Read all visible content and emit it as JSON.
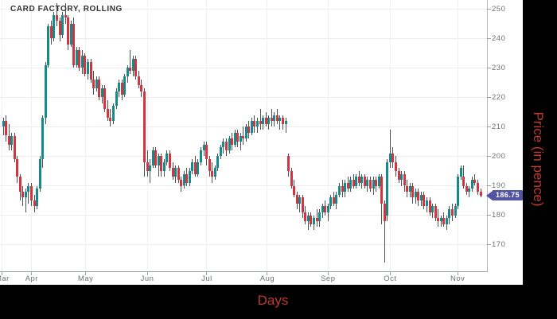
{
  "chart_data": {
    "type": "candlestick",
    "title": "CARD FACTORY, ROLLING",
    "xlabel": "Days",
    "ylabel": "Price (in pence)",
    "price_marker": {
      "label": "186.75",
      "value": 186.75,
      "color": "#5253a3"
    },
    "colors": {
      "up": "#128b8a",
      "down": "#d33540",
      "wick": "#4d5154",
      "grid": "#ececec",
      "axis": "#9aa0a3",
      "tick_label": "#6b7175",
      "axis_title": "#c2392e",
      "title": "#333333",
      "frame": "#000000",
      "plot_bg": "#ffffff"
    },
    "y_axis": {
      "ticks": [
        250,
        240,
        230,
        220,
        210,
        200,
        190,
        180,
        170
      ],
      "ylim": [
        161,
        253
      ]
    },
    "x_axis": {
      "ticks": [
        {
          "label": "Mar",
          "i": -0.3
        },
        {
          "label": "Apr",
          "i": 10.1
        },
        {
          "label": "May",
          "i": 29.2
        },
        {
          "label": "Jun",
          "i": 51.0
        },
        {
          "label": "Jul",
          "i": 72.1
        },
        {
          "label": "Aug",
          "i": 93.5
        },
        {
          "label": "Sep",
          "i": 115.0
        },
        {
          "label": "Oct",
          "i": 137.0
        },
        {
          "label": "Nov",
          "i": 160.9
        }
      ]
    },
    "candles": [
      [
        210,
        213,
        207,
        212
      ],
      [
        212,
        214,
        205,
        207
      ],
      [
        207,
        211,
        202,
        204
      ],
      [
        204,
        208,
        202,
        207
      ],
      [
        207,
        208,
        198,
        199
      ],
      [
        199,
        200,
        191,
        193
      ],
      [
        193,
        194,
        185,
        188
      ],
      [
        188,
        190,
        183,
        186
      ],
      [
        186,
        189,
        181,
        188
      ],
      [
        188,
        191,
        184,
        190
      ],
      [
        190,
        191,
        183,
        185
      ],
      [
        185,
        187,
        181,
        183
      ],
      [
        183,
        190,
        182,
        189
      ],
      [
        189,
        200,
        188,
        199
      ],
      [
        199,
        214,
        196,
        213
      ],
      [
        213,
        232,
        211,
        231
      ],
      [
        231,
        245,
        230,
        244
      ],
      [
        244,
        246,
        238,
        240
      ],
      [
        240,
        249,
        239,
        248
      ],
      [
        248,
        252,
        244,
        246
      ],
      [
        246,
        247,
        239,
        241
      ],
      [
        241,
        249,
        240,
        248
      ],
      [
        248,
        252,
        245,
        247
      ],
      [
        247,
        248,
        236,
        238
      ],
      [
        238,
        246,
        237,
        245
      ],
      [
        245,
        247,
        230,
        231
      ],
      [
        231,
        237,
        230,
        236
      ],
      [
        236,
        237,
        229,
        230
      ],
      [
        230,
        236,
        228,
        234
      ],
      [
        234,
        235,
        227,
        228
      ],
      [
        228,
        233,
        226,
        232
      ],
      [
        232,
        233,
        225,
        226
      ],
      [
        226,
        229,
        221,
        223
      ],
      [
        223,
        227,
        222,
        226
      ],
      [
        226,
        227,
        219,
        220
      ],
      [
        220,
        224,
        218,
        223
      ],
      [
        223,
        224,
        215,
        216
      ],
      [
        216,
        219,
        212,
        213
      ],
      [
        213,
        216,
        210,
        212
      ],
      [
        212,
        218,
        211,
        217
      ],
      [
        217,
        223,
        216,
        222
      ],
      [
        222,
        226,
        220,
        225
      ],
      [
        225,
        226,
        219,
        221
      ],
      [
        221,
        228,
        220,
        227
      ],
      [
        227,
        231,
        225,
        230
      ],
      [
        230,
        236,
        228,
        229
      ],
      [
        229,
        234,
        227,
        233
      ],
      [
        233,
        234,
        226,
        227
      ],
      [
        227,
        229,
        223,
        224
      ],
      [
        224,
        226,
        220,
        222
      ],
      [
        222,
        223,
        193,
        198
      ],
      [
        198,
        202,
        193,
        195
      ],
      [
        195,
        199,
        191,
        197
      ],
      [
        197,
        203,
        196,
        202
      ],
      [
        202,
        203,
        196,
        197
      ],
      [
        197,
        201,
        193,
        200
      ],
      [
        200,
        201,
        193,
        195
      ],
      [
        195,
        199,
        193,
        198
      ],
      [
        198,
        202,
        197,
        201
      ],
      [
        201,
        202,
        195,
        196
      ],
      [
        196,
        198,
        192,
        193
      ],
      [
        193,
        197,
        191,
        196
      ],
      [
        196,
        197,
        191,
        192
      ],
      [
        192,
        193,
        188,
        190
      ],
      [
        190,
        195,
        189,
        194
      ],
      [
        194,
        196,
        190,
        191
      ],
      [
        191,
        196,
        190,
        195
      ],
      [
        195,
        199,
        194,
        198
      ],
      [
        198,
        200,
        193,
        194
      ],
      [
        194,
        199,
        193,
        198
      ],
      [
        198,
        203,
        197,
        202
      ],
      [
        202,
        205,
        200,
        204
      ],
      [
        204,
        205,
        197,
        199
      ],
      [
        199,
        200,
        193,
        195
      ],
      [
        195,
        198,
        191,
        193
      ],
      [
        193,
        197,
        192,
        196
      ],
      [
        196,
        201,
        195,
        200
      ],
      [
        200,
        204,
        199,
        203
      ],
      [
        203,
        206,
        201,
        205
      ],
      [
        205,
        206,
        200,
        202
      ],
      [
        202,
        207,
        201,
        206
      ],
      [
        206,
        208,
        202,
        204
      ],
      [
        204,
        209,
        203,
        208
      ],
      [
        208,
        209,
        203,
        205
      ],
      [
        205,
        208,
        202,
        207
      ],
      [
        207,
        210,
        204,
        206
      ],
      [
        206,
        211,
        205,
        210
      ],
      [
        210,
        212,
        206,
        208
      ],
      [
        208,
        213,
        207,
        212
      ],
      [
        212,
        214,
        208,
        210
      ],
      [
        210,
        213,
        208,
        212
      ],
      [
        212,
        216,
        209,
        211
      ],
      [
        211,
        214,
        209,
        213
      ],
      [
        213,
        215,
        210,
        211
      ],
      [
        211,
        214,
        209,
        213
      ],
      [
        213,
        216,
        210,
        212
      ],
      [
        212,
        215,
        210,
        214
      ],
      [
        214,
        216,
        211,
        212
      ],
      [
        212,
        214,
        209,
        213
      ],
      [
        213,
        214,
        209,
        211
      ],
      [
        211,
        213,
        208,
        212
      ],
      [
        200,
        201,
        193,
        195
      ],
      [
        195,
        196,
        189,
        190
      ],
      [
        190,
        192,
        186,
        187
      ],
      [
        187,
        188,
        182,
        184
      ],
      [
        184,
        187,
        181,
        186
      ],
      [
        186,
        187,
        179,
        181
      ],
      [
        181,
        183,
        177,
        178
      ],
      [
        178,
        181,
        175,
        180
      ],
      [
        180,
        181,
        176,
        177
      ],
      [
        177,
        180,
        175,
        179
      ],
      [
        179,
        182,
        176,
        178
      ],
      [
        178,
        182,
        176,
        181
      ],
      [
        181,
        184,
        179,
        183
      ],
      [
        183,
        185,
        180,
        181
      ],
      [
        181,
        184,
        178,
        183
      ],
      [
        183,
        187,
        182,
        186
      ],
      [
        186,
        188,
        183,
        184
      ],
      [
        184,
        188,
        182,
        187
      ],
      [
        187,
        191,
        186,
        190
      ],
      [
        190,
        192,
        186,
        188
      ],
      [
        188,
        192,
        186,
        191
      ],
      [
        191,
        193,
        188,
        189
      ],
      [
        189,
        193,
        188,
        192
      ],
      [
        192,
        194,
        189,
        190
      ],
      [
        190,
        194,
        189,
        193
      ],
      [
        193,
        195,
        190,
        191
      ],
      [
        191,
        194,
        189,
        193
      ],
      [
        193,
        194,
        189,
        190
      ],
      [
        190,
        193,
        188,
        192
      ],
      [
        192,
        193,
        188,
        189
      ],
      [
        189,
        193,
        187,
        192
      ],
      [
        192,
        193,
        188,
        190
      ],
      [
        190,
        194,
        189,
        193
      ],
      [
        193,
        194,
        177,
        184
      ],
      [
        184,
        185,
        164,
        178
      ],
      [
        180,
        199,
        178,
        198
      ],
      [
        198,
        209,
        196,
        201
      ],
      [
        201,
        203,
        196,
        198
      ],
      [
        198,
        200,
        193,
        195
      ],
      [
        195,
        196,
        191,
        192
      ],
      [
        192,
        195,
        190,
        194
      ],
      [
        194,
        195,
        188,
        190
      ],
      [
        190,
        192,
        186,
        188
      ],
      [
        188,
        191,
        186,
        190
      ],
      [
        190,
        191,
        184,
        186
      ],
      [
        186,
        189,
        184,
        188
      ],
      [
        188,
        189,
        183,
        185
      ],
      [
        185,
        188,
        183,
        187
      ],
      [
        187,
        188,
        182,
        183
      ],
      [
        183,
        186,
        181,
        185
      ],
      [
        185,
        186,
        180,
        181
      ],
      [
        181,
        184,
        179,
        183
      ],
      [
        183,
        184,
        178,
        179
      ],
      [
        179,
        182,
        176,
        178
      ],
      [
        178,
        180,
        176,
        179
      ],
      [
        179,
        181,
        176,
        177
      ],
      [
        177,
        180,
        175,
        179
      ],
      [
        179,
        183,
        177,
        182
      ],
      [
        182,
        184,
        178,
        180
      ],
      [
        180,
        184,
        179,
        183
      ],
      [
        183,
        194,
        182,
        193
      ],
      [
        193,
        197,
        192,
        196
      ],
      [
        193,
        197,
        189,
        190
      ],
      [
        190,
        191,
        187,
        188
      ],
      [
        188,
        190,
        186,
        189
      ],
      [
        189,
        193,
        188,
        192
      ],
      [
        192,
        194,
        190,
        191
      ],
      [
        191,
        192,
        187,
        188
      ],
      [
        188,
        189,
        186,
        186.75
      ]
    ]
  }
}
